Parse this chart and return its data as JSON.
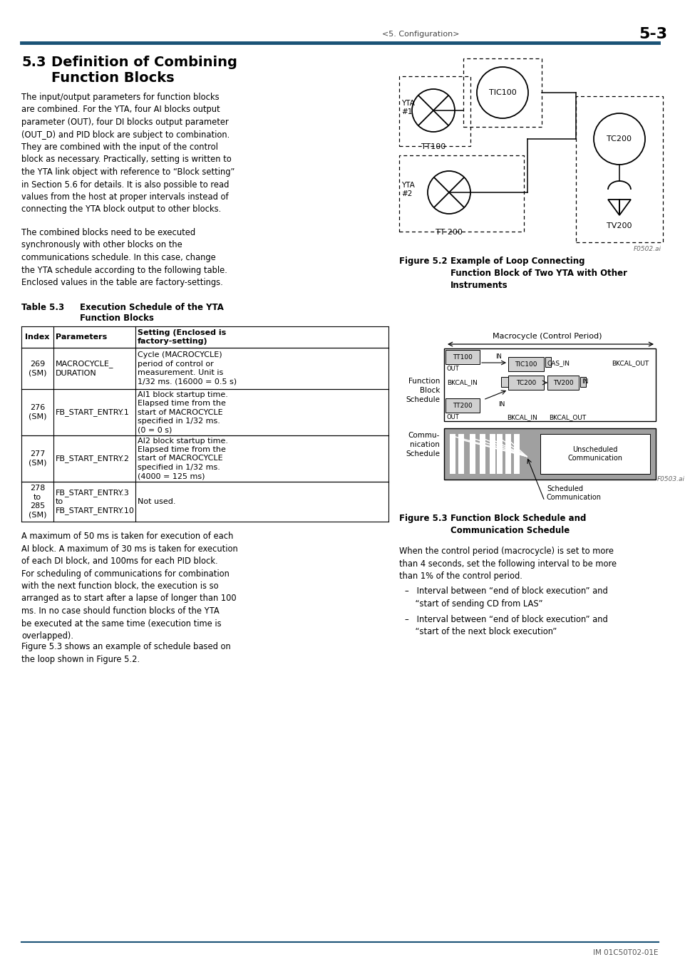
{
  "page_header_left": "<5. Configuration>",
  "page_header_right": "5-3",
  "header_line_color": "#1a5276",
  "blue_color": "#1a5276",
  "bg_color": "#ffffff",
  "text_color": "#000000",
  "footer_right": "IM 01C50T02-01E"
}
